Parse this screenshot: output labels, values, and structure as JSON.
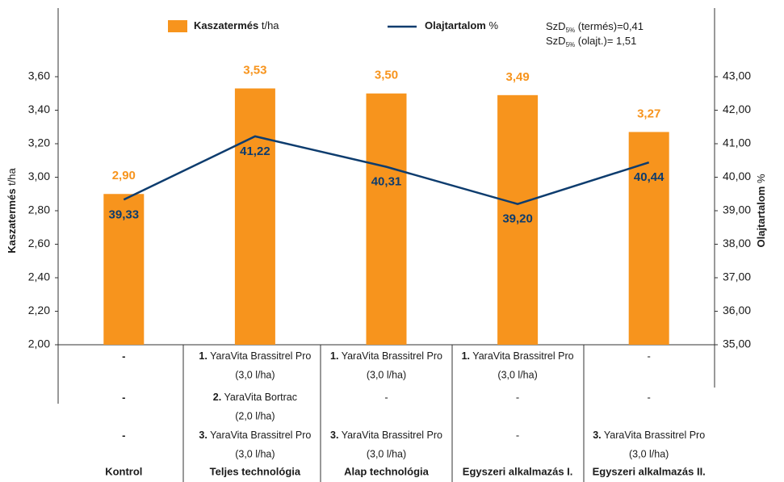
{
  "chart_data": {
    "type": "bar_line",
    "categories": [
      "Kontrol",
      "Teljes technológia",
      "Alap technológia",
      "Egyszeri alkalmazás I.",
      "Egyszeri alkalmazás II."
    ],
    "series": [
      {
        "name": "Kaszatermés",
        "unit": "t/ha",
        "color": "#f7941d",
        "type": "bar",
        "values": [
          2.9,
          3.53,
          3.5,
          3.49,
          3.27
        ],
        "value_labels": [
          "2,90",
          "3,53",
          "3,50",
          "3,49",
          "3,27"
        ]
      },
      {
        "name": "Olajtartalom",
        "unit": "%",
        "color": "#0d3c6e",
        "type": "line",
        "axis": "y2",
        "values": [
          39.33,
          41.22,
          40.31,
          39.2,
          40.44
        ],
        "value_labels": [
          "39,33",
          "41,22",
          "40,31",
          "39,20",
          "40,44"
        ]
      }
    ],
    "ylabel": "Kaszatermés",
    "ylabel_unit": "t/ha",
    "y2label": "Olajtartalom",
    "y2label_unit": "%",
    "ylim": [
      2.0,
      3.6
    ],
    "yticks": [
      {
        "value": 2.0,
        "label": "2,00"
      },
      {
        "value": 2.2,
        "label": "2,20"
      },
      {
        "value": 2.4,
        "label": "2,40"
      },
      {
        "value": 2.6,
        "label": "2,60"
      },
      {
        "value": 2.8,
        "label": "2,80"
      },
      {
        "value": 3.0,
        "label": "3,00"
      },
      {
        "value": 3.2,
        "label": "3,20"
      },
      {
        "value": 3.4,
        "label": "3,40"
      },
      {
        "value": 3.6,
        "label": "3,60"
      }
    ],
    "y2lim": [
      35,
      43
    ],
    "y2ticks": [
      {
        "value": 35,
        "label": "35,00"
      },
      {
        "value": 36,
        "label": "36,00"
      },
      {
        "value": 37,
        "label": "37,00"
      },
      {
        "value": 38,
        "label": "38,00"
      },
      {
        "value": 39,
        "label": "39,00"
      },
      {
        "value": 40,
        "label": "40,00"
      },
      {
        "value": 41,
        "label": "41,00"
      },
      {
        "value": 42,
        "label": "42,00"
      },
      {
        "value": 43,
        "label": "43,00"
      }
    ],
    "annotations": [
      {
        "main": "SzD",
        "sub": "5%",
        "text": " (termés)=0,41"
      },
      {
        "main": "SzD",
        "sub": "5%",
        "text": " (olajt.)= 1,51"
      }
    ],
    "treatments": [
      [
        "-",
        {
          "num": "1.",
          "product": " YaraVita Brassitrel Pro",
          "dose": "(3,0  l/ha)"
        },
        {
          "num": "1.",
          "product": " YaraVita Brassitrel Pro",
          "dose": "(3,0  l/ha)"
        },
        {
          "num": "1.",
          "product": " YaraVita Brassitrel Pro",
          "dose": "(3,0  l/ha)"
        },
        "-"
      ],
      [
        "-",
        {
          "num": "2.",
          "product": " YaraVita Bortrac",
          "dose": "(2,0 l/ha)"
        },
        "-",
        "-",
        "-"
      ],
      [
        "-",
        {
          "num": "3.",
          "product": " YaraVita Brassitrel Pro",
          "dose": "(3,0 l/ha)"
        },
        {
          "num": "3.",
          "product": " YaraVita Brassitrel Pro",
          "dose": "(3,0 l/ha)"
        },
        "-",
        {
          "num": "3.",
          "product": " YaraVita Brassitrel Pro",
          "dose": "(3,0 l/ha)"
        }
      ]
    ]
  }
}
